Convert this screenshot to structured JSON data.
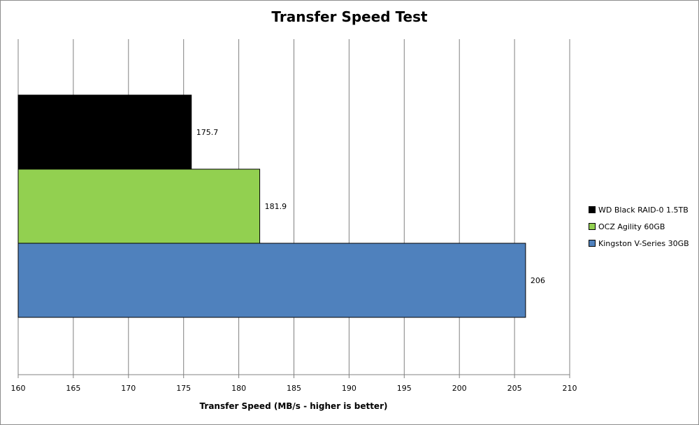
{
  "chart_data": {
    "type": "bar",
    "orientation": "horizontal",
    "title": "Transfer Speed Test",
    "xlabel": "Transfer Speed (MB/s - higher is better)",
    "ylabel": "",
    "xlim": [
      160,
      210
    ],
    "ticks": [
      160,
      165,
      170,
      175,
      180,
      185,
      190,
      195,
      200,
      205,
      210
    ],
    "grid": true,
    "legend_position": "right",
    "series": [
      {
        "name": "WD Black RAID-0 1.5TB",
        "value": 175.7,
        "label": "175.7",
        "color": "#000000"
      },
      {
        "name": "OCZ Agility 60GB",
        "value": 181.9,
        "label": "181.9",
        "color": "#92d050"
      },
      {
        "name": "Kingston V-Series 30GB",
        "value": 206,
        "label": "206",
        "color": "#4f81bd"
      }
    ]
  }
}
